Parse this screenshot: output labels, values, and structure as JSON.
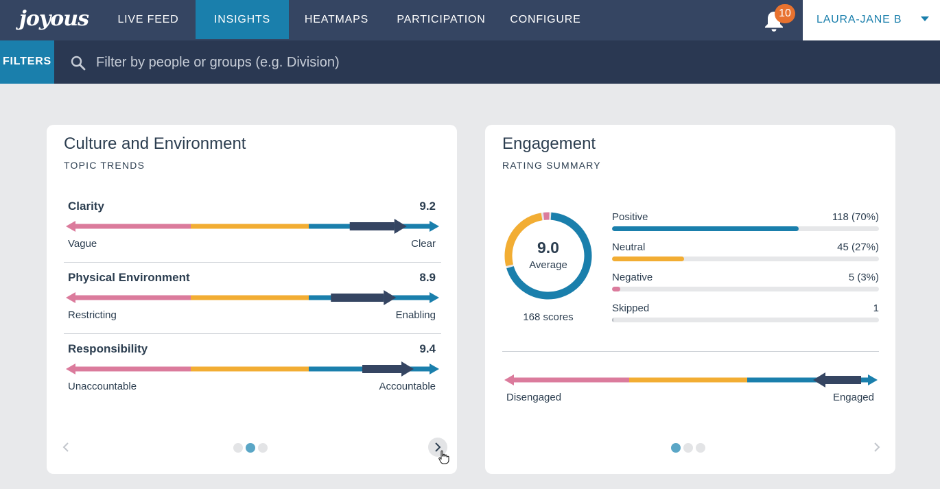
{
  "nav": {
    "logo": "joyous",
    "items": [
      {
        "label": "LIVE FEED",
        "active": false
      },
      {
        "label": "INSIGHTS",
        "active": true
      },
      {
        "label": "HEATMAPS",
        "active": false
      },
      {
        "label": "PARTICIPATION",
        "active": false
      },
      {
        "label": "CONFIGURE",
        "active": false
      }
    ],
    "notifications": "10",
    "user": "LAURA-JANE B"
  },
  "filterbar": {
    "button": "FILTERS",
    "placeholder": "Filter by people or groups (e.g. Division)"
  },
  "colors": {
    "pink": "#db7b9c",
    "yellow": "#f2ad33",
    "blue": "#1a7fac",
    "navy": "#354562",
    "track": "#e6e7e9"
  },
  "culture": {
    "title": "Culture and Environment",
    "subtitle": "TOPIC TRENDS",
    "topics": [
      {
        "name": "Clarity",
        "score": "9.2",
        "low": "Vague",
        "high": "Clear",
        "value": 9.2
      },
      {
        "name": "Physical Environment",
        "score": "8.9",
        "low": "Restricting",
        "high": "Enabling",
        "value": 8.9
      },
      {
        "name": "Responsibility",
        "score": "9.4",
        "low": "Unaccountable",
        "high": "Accountable",
        "value": 9.4
      }
    ],
    "page": 2,
    "pages": 3
  },
  "engagement": {
    "title": "Engagement",
    "subtitle": "RATING SUMMARY",
    "average": "9.0",
    "average_label": "Average",
    "scores": "168 scores",
    "ratings": [
      {
        "label": "Positive",
        "count": "118 (70%)",
        "fraction": 0.7,
        "color": "#1a7fac"
      },
      {
        "label": "Neutral",
        "count": "45 (27%)",
        "fraction": 0.27,
        "color": "#f2ad33"
      },
      {
        "label": "Negative",
        "count": "5 (3%)",
        "fraction": 0.03,
        "color": "#db7b9c"
      },
      {
        "label": "Skipped",
        "count": "1",
        "fraction": 0.006,
        "color": "#aeb3ba"
      }
    ],
    "scale_low": "Disengaged",
    "scale_high": "Engaged",
    "value": 9.0,
    "page": 1,
    "pages": 3
  }
}
